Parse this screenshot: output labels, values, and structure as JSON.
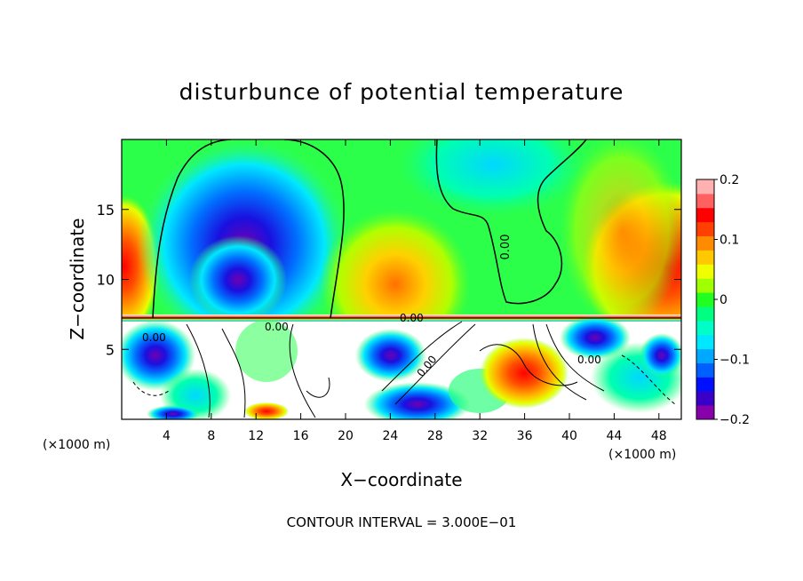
{
  "chart_data": {
    "type": "heatmap",
    "title": "disturbunce of potential temperature",
    "xlabel": "X−coordinate",
    "ylabel": "Z−coordinate",
    "x_unit": "(×1000 m)",
    "x_unit_right": "(×1000 m)",
    "xlim": [
      0,
      50
    ],
    "ylim": [
      0,
      20
    ],
    "xticks": [
      4,
      8,
      12,
      16,
      20,
      24,
      28,
      32,
      36,
      40,
      44,
      48
    ],
    "yticks": [
      5,
      10,
      15
    ],
    "colorbar": {
      "range": [
        -0.2,
        0.2
      ],
      "ticks": [
        0.2,
        0.1,
        0,
        -0.1,
        -0.2
      ],
      "tick_labels": [
        "0.2",
        "0.1",
        "0",
        "−0.1",
        "−0.2"
      ],
      "colors": [
        "#8800aa",
        "#3a00c8",
        "#0010ff",
        "#0060ff",
        "#00a8ff",
        "#00e8ff",
        "#00ffc8",
        "#00ff80",
        "#20ff20",
        "#a0ff00",
        "#f0ff00",
        "#ffc800",
        "#ff8c00",
        "#ff4000",
        "#ff0000",
        "#ff6060",
        "#ffb0b0"
      ]
    },
    "contour_labels": [
      "0.00",
      "0.00",
      "0.00",
      "0.00",
      "0.00",
      "0.00"
    ],
    "footnote": "CONTOUR INTERVAL = 3.000E−01"
  }
}
